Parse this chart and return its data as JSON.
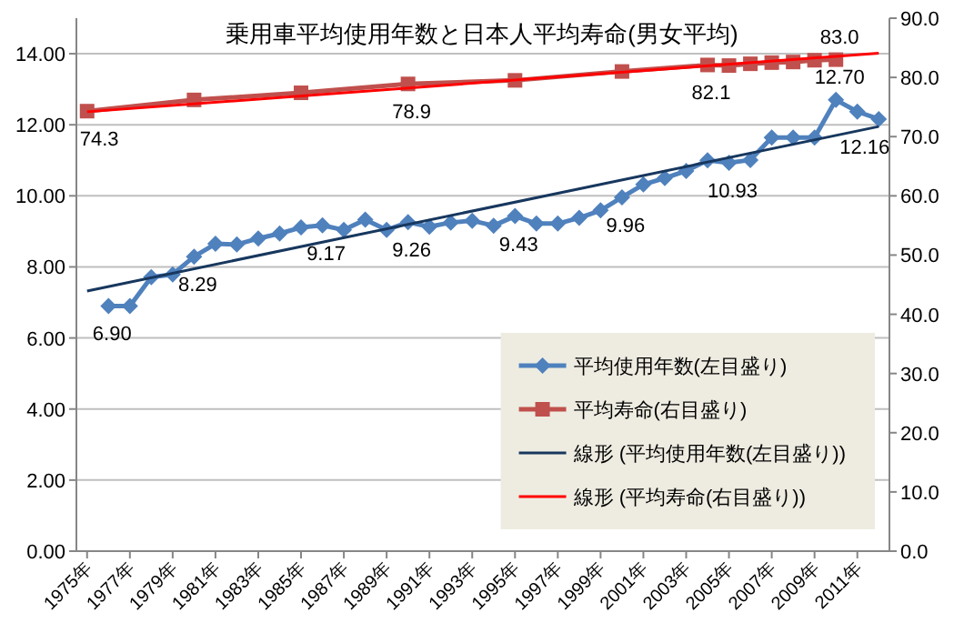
{
  "chart_data": {
    "type": "line",
    "title": "乗用車平均使用年数と日本人平均寿命(男女平均)",
    "xlim": [
      1974.5,
      2012.5
    ],
    "xticks": [
      {
        "value": 1975,
        "label": "1975年"
      },
      {
        "value": 1977,
        "label": "1977年"
      },
      {
        "value": 1979,
        "label": "1979年"
      },
      {
        "value": 1981,
        "label": "1981年"
      },
      {
        "value": 1983,
        "label": "1983年"
      },
      {
        "value": 1985,
        "label": "1985年"
      },
      {
        "value": 1987,
        "label": "1987年"
      },
      {
        "value": 1989,
        "label": "1989年"
      },
      {
        "value": 1991,
        "label": "1991年"
      },
      {
        "value": 1993,
        "label": "1993年"
      },
      {
        "value": 1995,
        "label": "1995年"
      },
      {
        "value": 1997,
        "label": "1997年"
      },
      {
        "value": 1999,
        "label": "1999年"
      },
      {
        "value": 2001,
        "label": "2001年"
      },
      {
        "value": 2003,
        "label": "2003年"
      },
      {
        "value": 2005,
        "label": "2005年"
      },
      {
        "value": 2007,
        "label": "2007年"
      },
      {
        "value": 2009,
        "label": "2009年"
      },
      {
        "value": 2011,
        "label": "2011年"
      }
    ],
    "ylim": [
      0,
      15
    ],
    "yticks": [
      {
        "value": 0,
        "label": "0.00"
      },
      {
        "value": 2,
        "label": "2.00"
      },
      {
        "value": 4,
        "label": "4.00"
      },
      {
        "value": 6,
        "label": "6.00"
      },
      {
        "value": 8,
        "label": "8.00"
      },
      {
        "value": 10,
        "label": "10.00"
      },
      {
        "value": 12,
        "label": "12.00"
      },
      {
        "value": 14,
        "label": "14.00"
      }
    ],
    "y2lim": [
      0,
      90
    ],
    "y2ticks": [
      {
        "value": 0,
        "label": "0.0"
      },
      {
        "value": 10,
        "label": "10.0"
      },
      {
        "value": 20,
        "label": "20.0"
      },
      {
        "value": 30,
        "label": "30.0"
      },
      {
        "value": 40,
        "label": "40.0"
      },
      {
        "value": 50,
        "label": "50.0"
      },
      {
        "value": 60,
        "label": "60.0"
      },
      {
        "value": 70,
        "label": "70.0"
      },
      {
        "value": 80,
        "label": "80.0"
      },
      {
        "value": 90,
        "label": "90.0"
      }
    ],
    "grid": "y",
    "legend": "bottom right",
    "series": [
      {
        "name": "平均使用年数(左目盛り)",
        "color": "#4f81bd",
        "marker": "diamond",
        "axis": "y",
        "x": [
          1976,
          1977,
          1978,
          1979,
          1980,
          1981,
          1982,
          1983,
          1984,
          1985,
          1986,
          1987,
          1988,
          1989,
          1990,
          1991,
          1992,
          1993,
          1994,
          1995,
          1996,
          1997,
          1998,
          1999,
          2000,
          2001,
          2002,
          2003,
          2004,
          2005,
          2006,
          2007,
          2008,
          2009,
          2010,
          2011,
          2012
        ],
        "values": [
          6.9,
          6.9,
          7.71,
          7.79,
          8.29,
          8.65,
          8.63,
          8.8,
          8.94,
          9.11,
          9.17,
          9.04,
          9.33,
          9.04,
          9.26,
          9.13,
          9.25,
          9.3,
          9.16,
          9.43,
          9.22,
          9.22,
          9.38,
          9.59,
          9.96,
          10.32,
          10.5,
          10.7,
          11.0,
          10.93,
          11.01,
          11.64,
          11.64,
          11.64,
          12.7,
          12.37,
          12.16
        ],
        "value_labels": [
          "6.90",
          null,
          null,
          null,
          "8.29",
          null,
          null,
          null,
          null,
          null,
          "9.17",
          null,
          null,
          null,
          "9.26",
          null,
          null,
          null,
          null,
          "9.43",
          null,
          null,
          null,
          null,
          "9.96",
          null,
          null,
          null,
          null,
          "10.93",
          null,
          null,
          null,
          null,
          "12.70",
          null,
          "12.16"
        ]
      },
      {
        "name": "平均寿命(右目盛り)",
        "color": "#c0504d",
        "marker": "square",
        "axis": "y2",
        "x": [
          1975,
          1980,
          1985,
          1990,
          1995,
          2000,
          2004,
          2005,
          2006,
          2007,
          2008,
          2009,
          2010
        ],
        "values": [
          74.3,
          76.2,
          77.4,
          78.9,
          79.5,
          81.0,
          82.1,
          82.0,
          82.3,
          82.5,
          82.6,
          82.9,
          83.0
        ],
        "value_labels": [
          "74.3",
          null,
          null,
          "78.9",
          null,
          null,
          "82.1",
          null,
          null,
          null,
          null,
          null,
          "83.0"
        ]
      },
      {
        "name": "線形 (平均使用年数(左目盛り))",
        "color": "#17375e",
        "marker": "none",
        "axis": "y",
        "x": [
          1975,
          2012
        ],
        "values": [
          7.32,
          11.95
        ]
      },
      {
        "name": "線形 (平均寿命(右目盛り))",
        "color": "#ff0000",
        "marker": "none",
        "axis": "y2",
        "x": [
          1975,
          2012
        ],
        "values": [
          74.2,
          84.1
        ]
      }
    ]
  }
}
